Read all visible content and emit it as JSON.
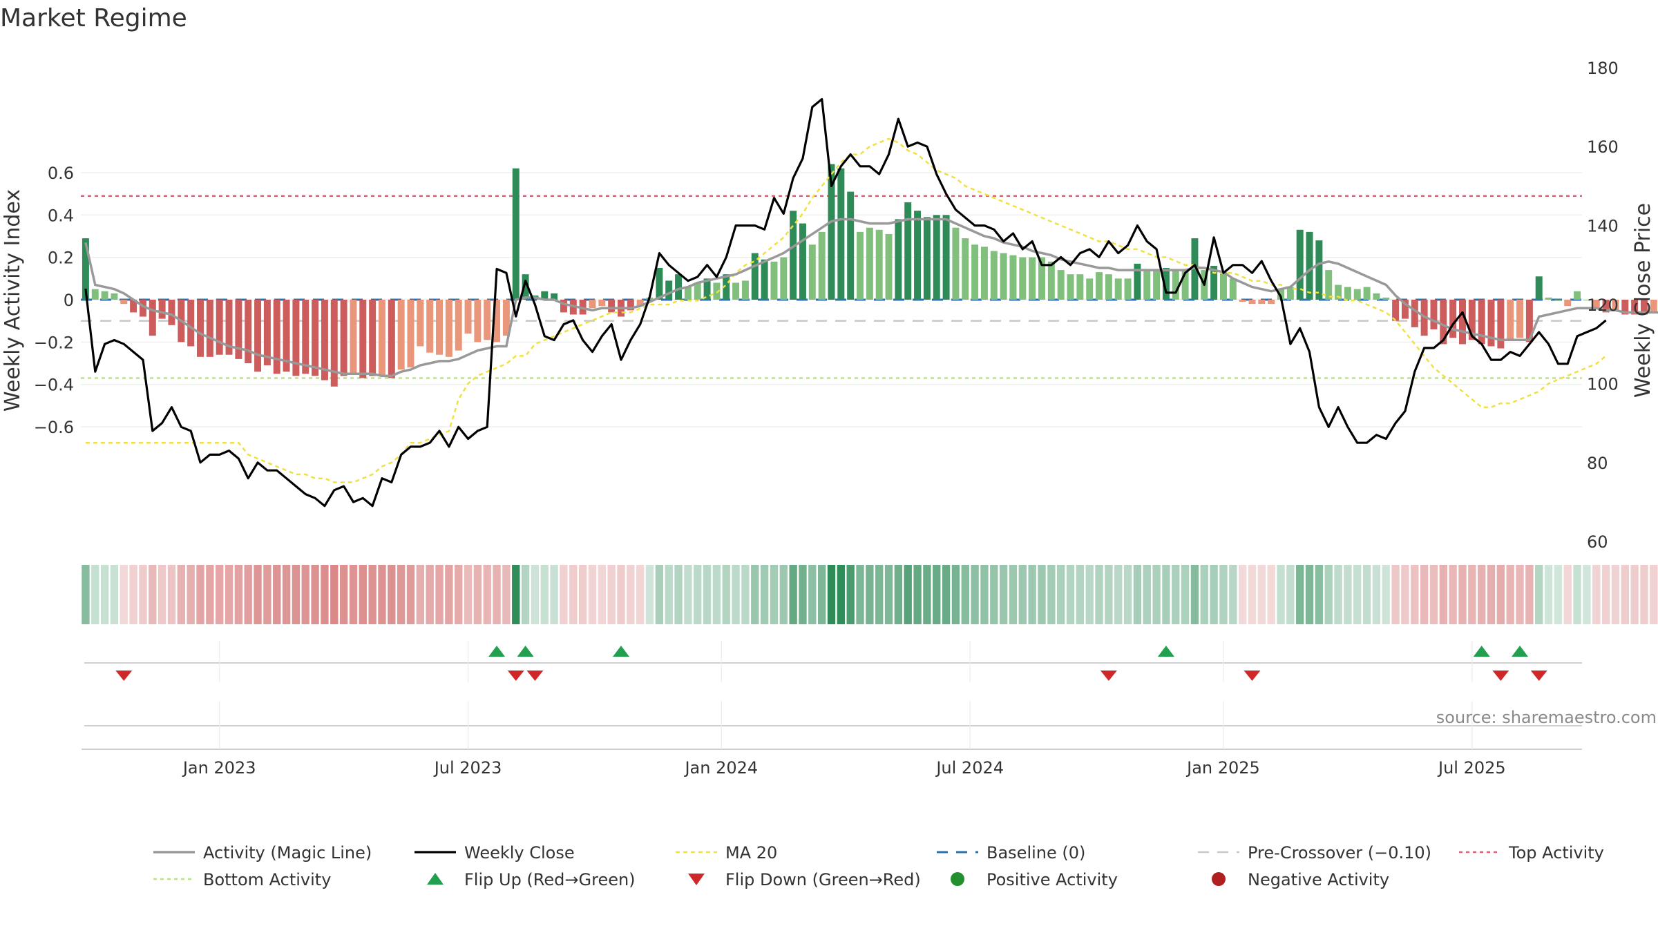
{
  "chart_data": {
    "type": "bar",
    "title": "Market Regime",
    "ylabel_left": "Weekly Activity Index",
    "ylabel_right": "Weekly Close Price",
    "ylim_left": [
      -0.69,
      0.69
    ],
    "ylim_right": [
      56.5,
      184.5
    ],
    "yticks_left": [
      {
        "value": 0.6,
        "label": "0.6"
      },
      {
        "value": 0.4,
        "label": "0.4"
      },
      {
        "value": 0.2,
        "label": "0.2"
      },
      {
        "value": 0,
        "label": "0"
      },
      {
        "value": -0.2,
        "label": "−0.2"
      },
      {
        "value": -0.4,
        "label": "−0.4"
      },
      {
        "value": -0.6,
        "label": "−0.6"
      }
    ],
    "yticks_right": [
      {
        "value": 180,
        "label": "180"
      },
      {
        "value": 160,
        "label": "160"
      },
      {
        "value": 140,
        "label": "140"
      },
      {
        "value": 120,
        "label": "120"
      },
      {
        "value": 100,
        "label": "100"
      },
      {
        "value": 80,
        "label": "80"
      },
      {
        "value": 60,
        "label": "60"
      }
    ],
    "xticks": [
      {
        "label": "Jan 2023",
        "week": 14
      },
      {
        "label": "Jul 2023",
        "week": 40
      },
      {
        "label": "Jan 2024",
        "week": 66.5
      },
      {
        "label": "Jul 2024",
        "week": 92.5
      },
      {
        "label": "Jan 2025",
        "week": 119
      },
      {
        "label": "Jul 2025",
        "week": 145
      }
    ],
    "weeks_total": 157,
    "reference_lines": {
      "baseline": 0,
      "pre_crossover": -0.1,
      "top_activity": 0.49,
      "bottom_activity": -0.37
    },
    "activity": [
      0.29,
      0.05,
      0.04,
      0.03,
      -0.02,
      -0.06,
      -0.08,
      -0.17,
      -0.09,
      -0.12,
      -0.2,
      -0.22,
      -0.27,
      -0.27,
      -0.26,
      -0.26,
      -0.28,
      -0.3,
      -0.34,
      -0.31,
      -0.35,
      -0.34,
      -0.36,
      -0.35,
      -0.36,
      -0.38,
      -0.41,
      -0.36,
      -0.35,
      -0.37,
      -0.36,
      -0.36,
      -0.37,
      -0.33,
      -0.32,
      -0.22,
      -0.25,
      -0.26,
      -0.27,
      -0.24,
      -0.16,
      -0.2,
      -0.19,
      -0.2,
      -0.17,
      0.62,
      0.12,
      0.02,
      0.04,
      0.03,
      -0.06,
      -0.07,
      -0.07,
      -0.04,
      -0.03,
      -0.06,
      -0.08,
      -0.05,
      -0.03,
      0.01,
      0.15,
      0.09,
      0.12,
      0.06,
      0.08,
      0.1,
      0.08,
      0.12,
      0.08,
      0.09,
      0.22,
      0.19,
      0.18,
      0.2,
      0.42,
      0.36,
      0.26,
      0.32,
      0.64,
      0.62,
      0.51,
      0.32,
      0.34,
      0.33,
      0.31,
      0.38,
      0.46,
      0.42,
      0.39,
      0.4,
      0.4,
      0.34,
      0.29,
      0.26,
      0.25,
      0.23,
      0.22,
      0.21,
      0.2,
      0.2,
      0.2,
      0.18,
      0.14,
      0.12,
      0.12,
      0.1,
      0.13,
      0.12,
      0.1,
      0.1,
      0.17,
      0.14,
      0.14,
      0.15,
      0.14,
      0.14,
      0.29,
      0.14,
      0.16,
      0.13,
      0.1,
      -0.01,
      -0.02,
      -0.02,
      -0.02,
      0.05,
      0.06,
      0.33,
      0.32,
      0.28,
      0.14,
      0.07,
      0.06,
      0.05,
      0.06,
      0.03,
      0.01,
      -0.1,
      -0.09,
      -0.13,
      -0.17,
      -0.14,
      -0.21,
      -0.18,
      -0.21,
      -0.19,
      -0.21,
      -0.22,
      -0.23,
      -0.19,
      -0.18,
      -0.2,
      0.11,
      0.01,
      0.0,
      -0.03,
      0.04,
      0.0,
      -0.04,
      -0.06,
      -0.05,
      -0.07,
      -0.07,
      -0.07,
      -0.06,
      -0.07
    ],
    "magic_line": [
      0.27,
      0.07,
      0.06,
      0.05,
      0.03,
      0.0,
      -0.03,
      -0.05,
      -0.06,
      -0.07,
      -0.1,
      -0.13,
      -0.16,
      -0.18,
      -0.2,
      -0.22,
      -0.23,
      -0.24,
      -0.26,
      -0.27,
      -0.28,
      -0.29,
      -0.3,
      -0.31,
      -0.32,
      -0.33,
      -0.34,
      -0.35,
      -0.35,
      -0.35,
      -0.35,
      -0.36,
      -0.36,
      -0.34,
      -0.33,
      -0.31,
      -0.3,
      -0.29,
      -0.29,
      -0.28,
      -0.26,
      -0.24,
      -0.23,
      -0.22,
      -0.22,
      0.0,
      0.01,
      0.01,
      0.0,
      0.0,
      -0.02,
      -0.03,
      -0.04,
      -0.05,
      -0.04,
      -0.04,
      -0.04,
      -0.04,
      -0.03,
      -0.01,
      0.01,
      0.03,
      0.05,
      0.06,
      0.08,
      0.09,
      0.1,
      0.11,
      0.12,
      0.14,
      0.16,
      0.18,
      0.2,
      0.22,
      0.25,
      0.28,
      0.31,
      0.34,
      0.37,
      0.38,
      0.38,
      0.37,
      0.36,
      0.36,
      0.36,
      0.37,
      0.38,
      0.38,
      0.38,
      0.38,
      0.38,
      0.36,
      0.34,
      0.32,
      0.3,
      0.29,
      0.27,
      0.26,
      0.25,
      0.23,
      0.22,
      0.21,
      0.19,
      0.18,
      0.17,
      0.16,
      0.15,
      0.15,
      0.14,
      0.14,
      0.14,
      0.14,
      0.14,
      0.14,
      0.14,
      0.14,
      0.15,
      0.15,
      0.14,
      0.13,
      0.1,
      0.08,
      0.06,
      0.05,
      0.04,
      0.05,
      0.06,
      0.1,
      0.14,
      0.17,
      0.18,
      0.17,
      0.15,
      0.13,
      0.11,
      0.09,
      0.07,
      0.02,
      -0.02,
      -0.05,
      -0.08,
      -0.1,
      -0.12,
      -0.14,
      -0.15,
      -0.16,
      -0.17,
      -0.18,
      -0.19,
      -0.19,
      -0.19,
      -0.19,
      -0.08,
      -0.07,
      -0.06,
      -0.05,
      -0.04,
      -0.04,
      -0.04,
      -0.05,
      -0.05,
      -0.06,
      -0.06,
      -0.06,
      -0.06,
      -0.06
    ],
    "weekly_close": [
      124,
      103,
      110,
      111,
      110,
      108,
      106,
      88,
      90,
      94,
      89,
      88,
      80,
      82,
      82,
      83,
      81,
      76,
      80,
      78,
      78,
      76,
      74,
      72,
      71,
      69,
      73,
      74,
      70,
      71,
      69,
      76,
      75,
      82,
      84,
      84,
      85,
      88,
      84,
      89,
      86,
      88,
      89,
      129,
      128,
      117,
      126,
      120,
      112,
      111,
      115,
      116,
      111,
      108,
      112,
      115,
      106,
      111,
      115,
      122,
      133,
      130,
      128,
      126,
      127,
      130,
      127,
      132,
      140,
      140,
      140,
      139,
      147,
      143,
      152,
      157,
      170,
      172,
      150,
      155,
      158,
      155,
      155,
      153,
      158,
      167,
      160,
      161,
      160,
      153,
      148,
      144,
      142,
      140,
      140,
      139,
      136,
      138,
      134,
      136,
      130,
      130,
      132,
      130,
      133,
      134,
      132,
      136,
      133,
      135,
      140,
      136,
      134,
      123,
      123,
      128,
      130,
      125,
      137,
      128,
      130,
      130,
      128,
      131,
      126,
      122,
      110,
      114,
      108,
      94,
      89,
      94,
      89,
      85,
      85,
      87,
      86,
      90,
      93,
      103,
      109,
      109,
      111,
      115,
      118,
      112,
      110,
      106,
      106,
      108,
      107,
      110,
      113,
      110,
      105,
      105,
      112,
      113,
      114,
      116
    ],
    "ma20": [
      85,
      85,
      85,
      85,
      85,
      85,
      85,
      85,
      85,
      85,
      85,
      85,
      85,
      85,
      85,
      85,
      85,
      82,
      81,
      80,
      79,
      78,
      77,
      77,
      76,
      76,
      75,
      75,
      75,
      76,
      77,
      79,
      80,
      82,
      85,
      85,
      86,
      87,
      88,
      96,
      100,
      102,
      103,
      104,
      105,
      107,
      107,
      110,
      111,
      112,
      113,
      114,
      115,
      116,
      117,
      118,
      118,
      118,
      119,
      120,
      120,
      120,
      121,
      121,
      121,
      122,
      123,
      125,
      128,
      130,
      131,
      133,
      135,
      137,
      140,
      143,
      147,
      150,
      153,
      156,
      158,
      158,
      160,
      161,
      162,
      161,
      159,
      158,
      156,
      154,
      153,
      152,
      150,
      149,
      148,
      147,
      146,
      145,
      144,
      143,
      142,
      141,
      140,
      139,
      138,
      137,
      136,
      136,
      135,
      134,
      134,
      133,
      132,
      132,
      131,
      130,
      130,
      129,
      128,
      128,
      128,
      127,
      126,
      126,
      125,
      125,
      124,
      124,
      123,
      123,
      122,
      122,
      121,
      121,
      120,
      119,
      118,
      116,
      113,
      110,
      107,
      104,
      102,
      100,
      98,
      96,
      94,
      94,
      95,
      95,
      96,
      97,
      98,
      100,
      101,
      102,
      103,
      104,
      105,
      107
    ],
    "flip_up_weeks": [
      43,
      46,
      56,
      113,
      146,
      150
    ],
    "flip_down_weeks": [
      4,
      45,
      47,
      107,
      122,
      148,
      152
    ],
    "legend": [
      {
        "key": "magic",
        "label": "Activity (Magic Line)"
      },
      {
        "key": "close",
        "label": "Weekly Close"
      },
      {
        "key": "ma20",
        "label": "MA 20"
      },
      {
        "key": "baseline",
        "label": "Baseline (0)"
      },
      {
        "key": "precross",
        "label": "Pre-Crossover (−0.10)"
      },
      {
        "key": "top",
        "label": "Top Activity"
      },
      {
        "key": "bottom",
        "label": "Bottom Activity"
      },
      {
        "key": "flipup",
        "label": "Flip Up (Red→Green)"
      },
      {
        "key": "flipdown",
        "label": "Flip Down (Green→Red)"
      },
      {
        "key": "pos",
        "label": "Positive Activity"
      },
      {
        "key": "neg",
        "label": "Negative Activity"
      }
    ],
    "legend_placement": "bottom",
    "source_label": "source: sharemaestro.com"
  },
  "colors": {
    "pos_dark": "#2e8b57",
    "pos_light": "#80c07c",
    "neg_dark": "#cd5c5c",
    "neg_light": "#e9967a",
    "magic_line": "#999999",
    "close_line": "#000000",
    "ma20": "#f0e040",
    "baseline": "#2a70b0",
    "pre_crossover": "#c8c8c8",
    "top_activity": "#e0607a",
    "bottom_activity": "#b8e08a",
    "flip_up": "#22a050",
    "flip_down": "#d02828",
    "pos_marker": "#22902e",
    "neg_marker": "#b02020"
  }
}
